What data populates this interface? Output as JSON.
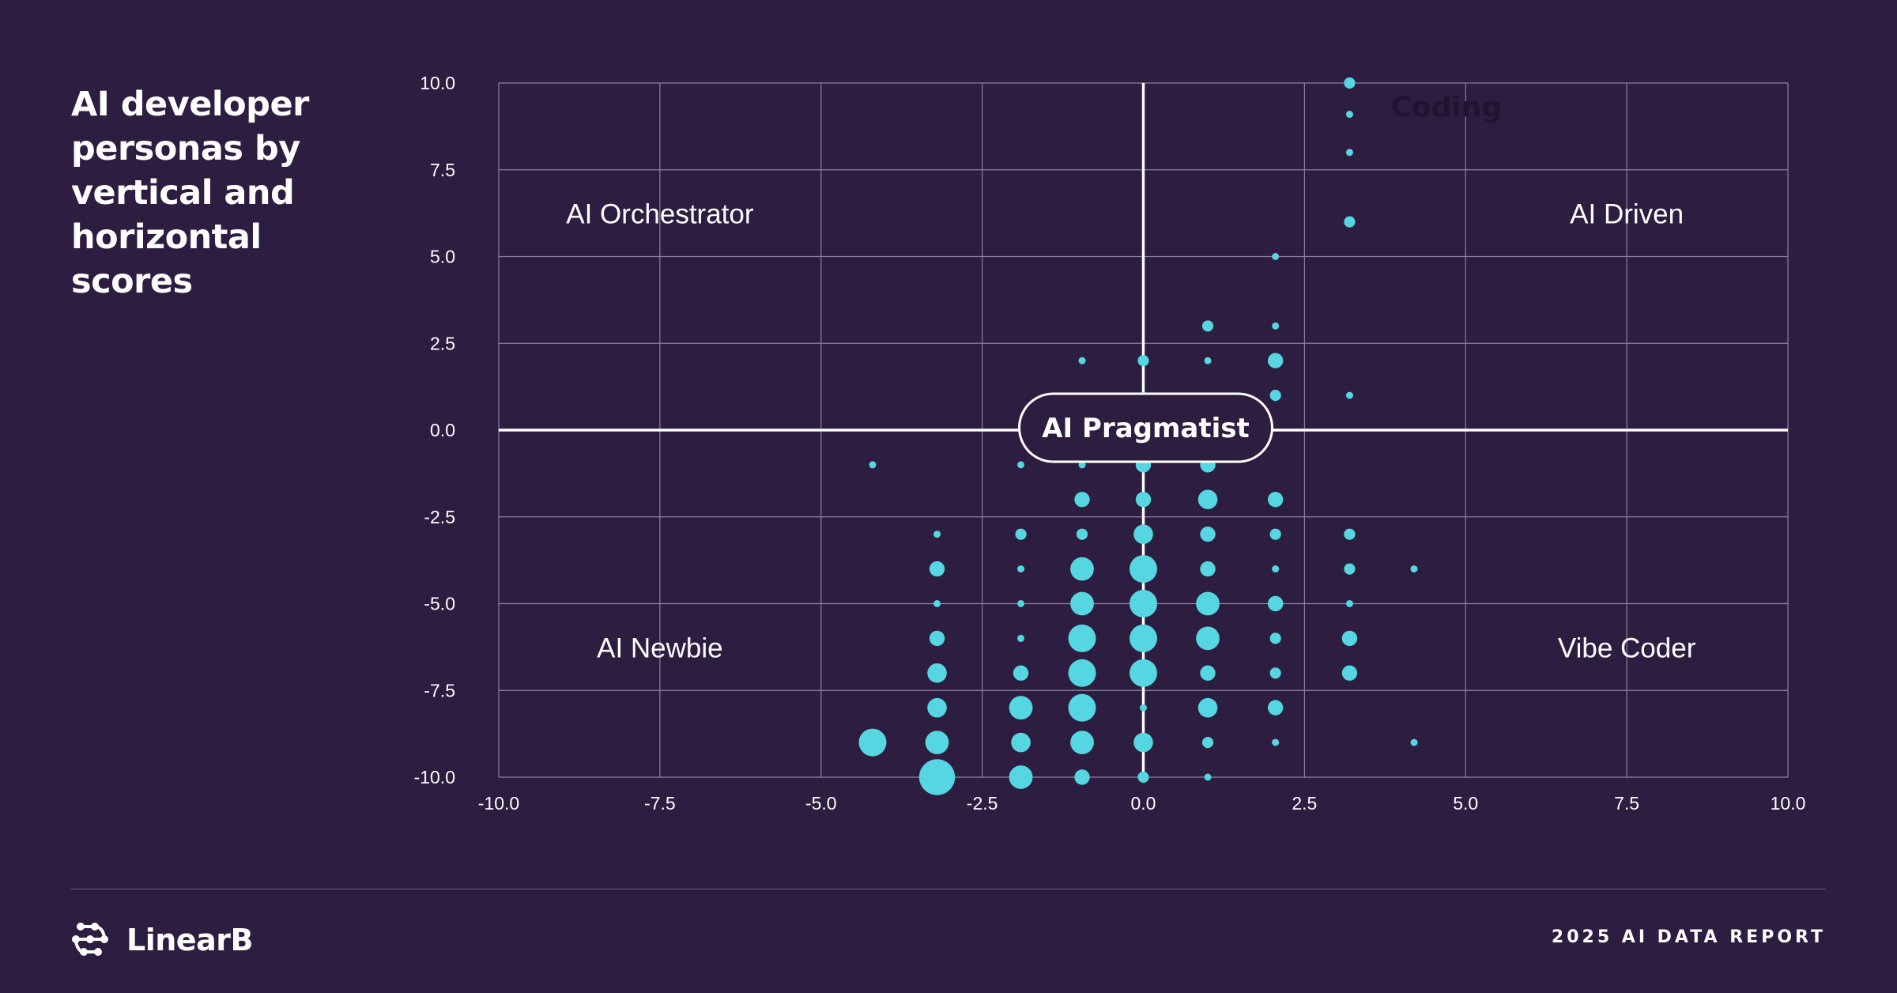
{
  "title": "AI developer personas by vertical and horizontal scores",
  "brand": {
    "name": "LinearB",
    "logo_icon": "linearb-logo-icon"
  },
  "report_label": "2025 AI DATA REPORT",
  "colors": {
    "background": "#2d1d40",
    "bubble": "#55d6e0",
    "grid": "#8d81a0",
    "axis": "#ffffff"
  },
  "chart_data": {
    "type": "scatter",
    "xlim": [
      -10,
      10
    ],
    "ylim": [
      -10,
      10
    ],
    "xticks": [
      "-10.0",
      "-7.5",
      "-5.0",
      "-2.5",
      "0.0",
      "2.5",
      "5.0",
      "7.5",
      "10.0"
    ],
    "yticks": [
      "10.0",
      "7.5",
      "5.0",
      "2.5",
      "0.0",
      "-2.5",
      "-5.0",
      "-7.5",
      "-10.0"
    ],
    "grid": true,
    "quadrant_labels": [
      {
        "text": "AI Orchestrator",
        "x": -7.5,
        "y": 6.25
      },
      {
        "text": "AI Driven",
        "x": 7.5,
        "y": 6.25
      },
      {
        "text": "AI Newbie",
        "x": -7.5,
        "y": -6.25
      },
      {
        "text": "Vibe Coder",
        "x": 7.5,
        "y": -6.25
      }
    ],
    "center_label": "AI Pragmatist",
    "annotation": {
      "text": "Coding",
      "x": 4.7,
      "y": 9.3
    },
    "points": [
      {
        "x": 3.2,
        "y": 10,
        "size": 2
      },
      {
        "x": 3.2,
        "y": 9.1,
        "size": 1
      },
      {
        "x": 3.2,
        "y": 8.0,
        "size": 1
      },
      {
        "x": 3.2,
        "y": 6.0,
        "size": 2
      },
      {
        "x": 2.05,
        "y": 5.0,
        "size": 1
      },
      {
        "x": 1.0,
        "y": 3.0,
        "size": 2
      },
      {
        "x": 2.05,
        "y": 3.0,
        "size": 1
      },
      {
        "x": -0.95,
        "y": 2.0,
        "size": 1
      },
      {
        "x": 0,
        "y": 2.0,
        "size": 2
      },
      {
        "x": 1.0,
        "y": 2.0,
        "size": 1
      },
      {
        "x": 2.05,
        "y": 2.0,
        "size": 3
      },
      {
        "x": 0,
        "y": 1.0,
        "size": 1
      },
      {
        "x": 2.05,
        "y": 1.0,
        "size": 2
      },
      {
        "x": 3.2,
        "y": 1.0,
        "size": 1
      },
      {
        "x": -4.2,
        "y": -1.0,
        "size": 1
      },
      {
        "x": -1.9,
        "y": -1.0,
        "size": 1
      },
      {
        "x": -0.95,
        "y": -1.0,
        "size": 1
      },
      {
        "x": 0,
        "y": -1.0,
        "size": 3
      },
      {
        "x": 1.0,
        "y": -1.0,
        "size": 3
      },
      {
        "x": -0.95,
        "y": -2.0,
        "size": 3
      },
      {
        "x": 0,
        "y": -2.0,
        "size": 3
      },
      {
        "x": 1.0,
        "y": -2.0,
        "size": 4
      },
      {
        "x": 2.05,
        "y": -2.0,
        "size": 3
      },
      {
        "x": -3.2,
        "y": -3.0,
        "size": 1
      },
      {
        "x": -1.9,
        "y": -3.0,
        "size": 2
      },
      {
        "x": -0.95,
        "y": -3.0,
        "size": 2
      },
      {
        "x": 0,
        "y": -3.0,
        "size": 4
      },
      {
        "x": 1.0,
        "y": -3.0,
        "size": 3
      },
      {
        "x": 2.05,
        "y": -3.0,
        "size": 2
      },
      {
        "x": 3.2,
        "y": -3.0,
        "size": 2
      },
      {
        "x": -3.2,
        "y": -4.0,
        "size": 3
      },
      {
        "x": -1.9,
        "y": -4.0,
        "size": 1
      },
      {
        "x": -0.95,
        "y": -4.0,
        "size": 5
      },
      {
        "x": 0,
        "y": -4.0,
        "size": 6
      },
      {
        "x": 1.0,
        "y": -4.0,
        "size": 3
      },
      {
        "x": 2.05,
        "y": -4.0,
        "size": 1
      },
      {
        "x": 3.2,
        "y": -4.0,
        "size": 2
      },
      {
        "x": 4.2,
        "y": -4.0,
        "size": 1
      },
      {
        "x": -3.2,
        "y": -5.0,
        "size": 1
      },
      {
        "x": -1.9,
        "y": -5.0,
        "size": 1
      },
      {
        "x": -0.95,
        "y": -5.0,
        "size": 5
      },
      {
        "x": 0,
        "y": -5.0,
        "size": 6
      },
      {
        "x": 1.0,
        "y": -5.0,
        "size": 5
      },
      {
        "x": 2.05,
        "y": -5.0,
        "size": 3
      },
      {
        "x": 3.2,
        "y": -5.0,
        "size": 1
      },
      {
        "x": -3.2,
        "y": -6.0,
        "size": 3
      },
      {
        "x": -1.9,
        "y": -6.0,
        "size": 1
      },
      {
        "x": -0.95,
        "y": -6.0,
        "size": 6
      },
      {
        "x": 0,
        "y": -6.0,
        "size": 6
      },
      {
        "x": 1.0,
        "y": -6.0,
        "size": 5
      },
      {
        "x": 2.05,
        "y": -6.0,
        "size": 2
      },
      {
        "x": 3.2,
        "y": -6.0,
        "size": 3
      },
      {
        "x": -3.2,
        "y": -7.0,
        "size": 4
      },
      {
        "x": -1.9,
        "y": -7.0,
        "size": 3
      },
      {
        "x": -0.95,
        "y": -7.0,
        "size": 6
      },
      {
        "x": 0,
        "y": -7.0,
        "size": 6
      },
      {
        "x": 1.0,
        "y": -7.0,
        "size": 3
      },
      {
        "x": 2.05,
        "y": -7.0,
        "size": 2
      },
      {
        "x": 3.2,
        "y": -7.0,
        "size": 3
      },
      {
        "x": -3.2,
        "y": -8.0,
        "size": 4
      },
      {
        "x": -1.9,
        "y": -8.0,
        "size": 5
      },
      {
        "x": -0.95,
        "y": -8.0,
        "size": 6
      },
      {
        "x": 0,
        "y": -8.0,
        "size": 1
      },
      {
        "x": 1.0,
        "y": -8.0,
        "size": 4
      },
      {
        "x": 2.05,
        "y": -8.0,
        "size": 3
      },
      {
        "x": -4.2,
        "y": -9.0,
        "size": 6
      },
      {
        "x": -3.2,
        "y": -9.0,
        "size": 5
      },
      {
        "x": -1.9,
        "y": -9.0,
        "size": 4
      },
      {
        "x": -0.95,
        "y": -9.0,
        "size": 5
      },
      {
        "x": 0,
        "y": -9.0,
        "size": 4
      },
      {
        "x": 1.0,
        "y": -9.0,
        "size": 2
      },
      {
        "x": 2.05,
        "y": -9.0,
        "size": 1
      },
      {
        "x": 4.2,
        "y": -9.0,
        "size": 1
      },
      {
        "x": -3.2,
        "y": -10.0,
        "size": 8
      },
      {
        "x": -1.9,
        "y": -10.0,
        "size": 5
      },
      {
        "x": -0.95,
        "y": -10.0,
        "size": 3
      },
      {
        "x": 0,
        "y": -10.0,
        "size": 2
      },
      {
        "x": 1.0,
        "y": -10.0,
        "size": 1
      }
    ]
  }
}
